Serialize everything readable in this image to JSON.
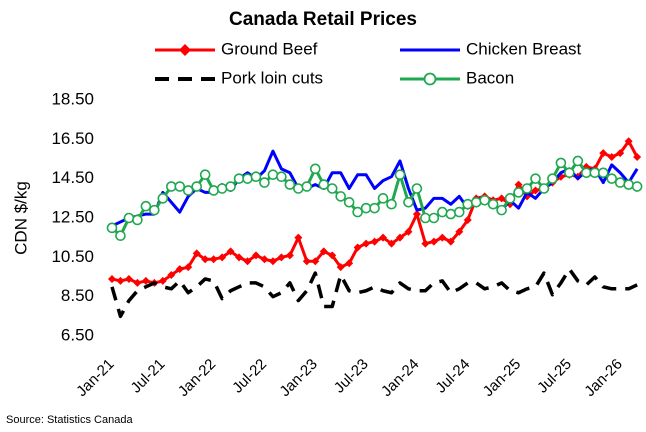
{
  "chart_data": {
    "type": "line",
    "title": "Canada Retail Prices",
    "y_label": "CDN $/kg",
    "source": "Source: Statistics Canada",
    "categories": [
      "Jan-21",
      null,
      null,
      null,
      null,
      null,
      "Jul-21",
      null,
      null,
      null,
      null,
      null,
      "Jan-22",
      null,
      null,
      null,
      null,
      null,
      "Jul-22",
      null,
      null,
      null,
      null,
      null,
      "Jan-23",
      null,
      null,
      null,
      null,
      null,
      "Jul-23",
      null,
      null,
      null,
      null,
      null,
      "Jan-24",
      null,
      null,
      null,
      null,
      null,
      "Jul-24",
      null,
      null,
      null,
      null,
      null,
      "Jan-25",
      null,
      null,
      null,
      null,
      null,
      "Jul-25",
      null,
      null,
      null,
      null,
      null,
      "Jan-26",
      null,
      null
    ],
    "ylim": [
      6.5,
      18.5
    ],
    "yticks": [
      {
        "value": 6.5,
        "label": "6.50"
      },
      {
        "value": 8.5,
        "label": "8.50"
      },
      {
        "value": 10.5,
        "label": "10.50"
      },
      {
        "value": 12.5,
        "label": "12.50"
      },
      {
        "value": 14.5,
        "label": "14.50"
      },
      {
        "value": 16.5,
        "label": "16.50"
      },
      {
        "value": 18.5,
        "label": "18.50"
      }
    ],
    "series": [
      {
        "name": "Ground Beef",
        "color": "#ff0000",
        "marker": "diamond",
        "values": [
          9.4,
          9.3,
          9.4,
          9.2,
          9.3,
          9.2,
          9.3,
          9.6,
          9.9,
          10.0,
          10.7,
          10.4,
          10.4,
          10.5,
          10.8,
          10.5,
          10.3,
          10.6,
          10.4,
          10.3,
          10.5,
          10.6,
          11.5,
          10.3,
          10.3,
          10.8,
          10.6,
          10.0,
          10.2,
          11.0,
          11.2,
          11.3,
          11.5,
          11.2,
          11.5,
          11.8,
          12.7,
          11.2,
          11.3,
          11.5,
          11.3,
          11.8,
          12.4,
          13.5,
          13.6,
          13.4,
          13.5,
          13.2,
          14.2,
          13.6,
          13.9,
          14.0,
          14.3,
          14.6,
          14.7,
          14.6,
          15.1,
          15.0,
          15.8,
          15.6,
          15.8,
          16.4,
          15.6
        ]
      },
      {
        "name": "Chicken Breast",
        "color": "#0000ff",
        "values": [
          12.1,
          12.3,
          12.5,
          12.6,
          12.7,
          12.7,
          13.8,
          13.3,
          12.8,
          13.6,
          14.0,
          13.8,
          13.8,
          14.2,
          13.9,
          14.5,
          14.8,
          14.5,
          14.9,
          15.9,
          15.0,
          14.8,
          14.0,
          14.0,
          14.2,
          14.0,
          14.8,
          14.8,
          14.0,
          14.7,
          14.7,
          14.0,
          14.4,
          14.6,
          15.4,
          14.0,
          12.9,
          13.0,
          13.5,
          13.5,
          13.2,
          13.6,
          13.0,
          13.5,
          13.4,
          13.2,
          12.9,
          13.4,
          13.0,
          13.8,
          13.5,
          14.0,
          14.3,
          14.8,
          15.0,
          14.5,
          14.9,
          15.0,
          14.3,
          15.2,
          14.8,
          14.3,
          15.0
        ]
      },
      {
        "name": "Pork loin cuts",
        "color": "#000000",
        "dashed": true,
        "values": [
          9.0,
          7.5,
          8.3,
          8.8,
          9.0,
          9.2,
          9.0,
          8.9,
          9.3,
          8.7,
          9.0,
          9.4,
          9.3,
          8.4,
          8.8,
          9.0,
          9.2,
          9.2,
          9.0,
          8.5,
          8.7,
          9.2,
          8.3,
          8.8,
          9.7,
          8.0,
          8.0,
          9.6,
          8.8,
          8.7,
          8.8,
          9.0,
          8.8,
          8.7,
          9.2,
          8.9,
          8.8,
          8.8,
          9.2,
          9.3,
          8.7,
          8.9,
          9.2,
          9.2,
          8.9,
          9.0,
          9.2,
          8.8,
          8.7,
          8.9,
          9.0,
          9.7,
          8.6,
          9.2,
          9.9,
          9.3,
          9.1,
          9.5,
          9.0,
          8.9,
          8.9,
          8.9,
          9.1
        ]
      },
      {
        "name": "Bacon",
        "color": "#1fa84f",
        "marker": "circle",
        "values": [
          12.0,
          11.6,
          12.5,
          12.4,
          13.1,
          12.9,
          13.5,
          14.1,
          14.1,
          13.9,
          14.1,
          14.7,
          13.9,
          14.0,
          14.1,
          14.5,
          14.5,
          14.6,
          14.3,
          14.7,
          14.6,
          14.2,
          14.0,
          14.1,
          15.0,
          14.2,
          14.0,
          13.6,
          13.3,
          12.8,
          13.0,
          13.0,
          13.5,
          13.2,
          14.7,
          13.3,
          14.0,
          12.5,
          12.5,
          12.8,
          12.7,
          12.8,
          13.2,
          13.3,
          13.4,
          13.2,
          12.9,
          13.5,
          13.8,
          14.0,
          14.5,
          14.0,
          14.5,
          15.3,
          14.8,
          15.4,
          14.8,
          14.8,
          14.8,
          14.5,
          14.3,
          14.2,
          14.1
        ]
      }
    ]
  }
}
